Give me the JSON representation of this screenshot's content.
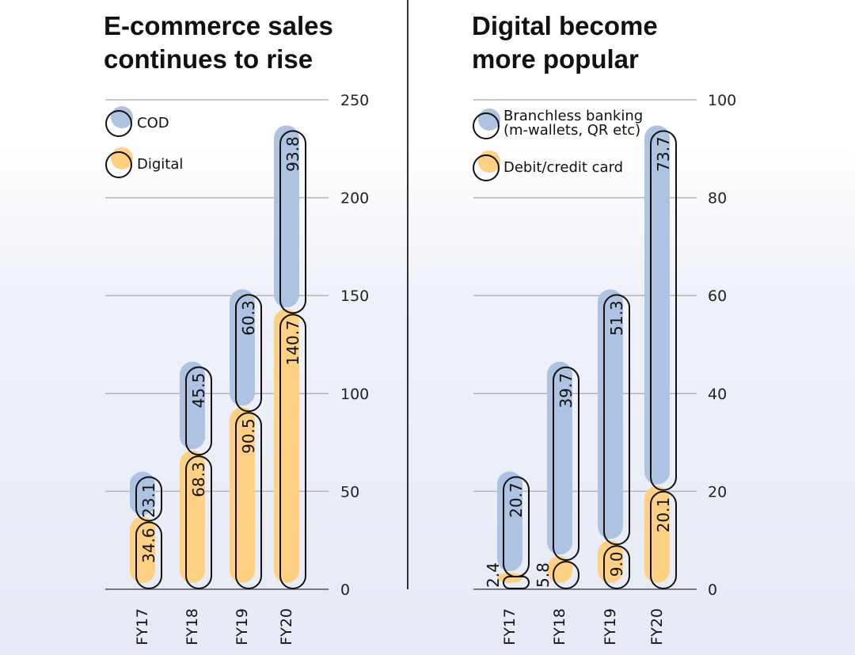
{
  "colors": {
    "blue": "#aec2e2",
    "orange": "#fdd082",
    "outline": "#111111",
    "grid": "#b5b5b5",
    "divider": "#333333"
  },
  "chart_data": [
    {
      "type": "bar",
      "stacked": true,
      "title_lines": [
        "E-commerce sales",
        "continues to rise"
      ],
      "categories": [
        "FY17",
        "FY18",
        "FY19",
        "FY20"
      ],
      "series": [
        {
          "name": "Digital",
          "color": "orange",
          "values": [
            34.6,
            68.3,
            90.5,
            140.7
          ]
        },
        {
          "name": "COD",
          "color": "blue",
          "values": [
            23.1,
            45.5,
            60.3,
            93.8
          ]
        }
      ],
      "legend": [
        {
          "label_lines": [
            "COD"
          ],
          "color": "blue"
        },
        {
          "label_lines": [
            "Digital"
          ],
          "color": "orange"
        }
      ],
      "ylim": [
        0,
        250
      ],
      "yticks": [
        0,
        50,
        100,
        150,
        200,
        250
      ],
      "ytick_labels": [
        "0",
        "50",
        "100",
        "150",
        "200",
        "250"
      ],
      "grid": true,
      "legend_position": "top-left"
    },
    {
      "type": "bar",
      "stacked": true,
      "title_lines": [
        "Digital become",
        "more popular"
      ],
      "categories": [
        "FY17",
        "FY18",
        "FY19",
        "FY20"
      ],
      "series": [
        {
          "name": "Debit/credit card",
          "color": "orange",
          "values": [
            2.4,
            5.8,
            9.0,
            20.1
          ]
        },
        {
          "name": "Branchless banking (m-wallets, QR etc)",
          "color": "blue",
          "values": [
            20.7,
            39.7,
            51.3,
            73.7
          ]
        }
      ],
      "value_labels": [
        [
          "2.4",
          "5.8",
          "9.0",
          "20.1"
        ],
        [
          "20.7",
          "39.7",
          "51.3",
          "73.7"
        ]
      ],
      "legend": [
        {
          "label_lines": [
            "Branchless banking",
            "(m-wallets, QR etc)"
          ],
          "color": "blue"
        },
        {
          "label_lines": [
            "Debit/credit card"
          ],
          "color": "orange"
        }
      ],
      "ylim": [
        0,
        100
      ],
      "yticks": [
        0,
        20,
        40,
        60,
        80,
        100
      ],
      "ytick_labels": [
        "0",
        "20",
        "40",
        "60",
        "80",
        "100"
      ],
      "grid": true,
      "legend_position": "top-left"
    }
  ]
}
